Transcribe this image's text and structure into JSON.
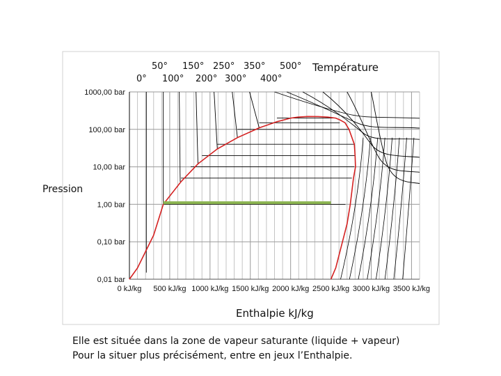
{
  "chart_data": {
    "type": "line",
    "title": "",
    "xlabel": "Enthalpie kJ/kg",
    "ylabel": "Pression",
    "x_ticks": [
      "0 kJ/kg",
      "500 kJ/kg",
      "1000 kJ/kg",
      "1500 kJ/kg",
      "2000 kJ/kg",
      "2500 kJ/kg",
      "3000 kJ/kg",
      "3500 kJ/kg"
    ],
    "x_tick_values": [
      0,
      500,
      1000,
      1500,
      2000,
      2500,
      3000,
      3500
    ],
    "y_ticks": [
      "1000,00 bar",
      "100,00 bar",
      "10,00 bar",
      "1,00 bar",
      "0,10 bar",
      "0,01 bar"
    ],
    "y_tick_values": [
      1000,
      100,
      10,
      1,
      0.1,
      0.01
    ],
    "xlim": [
      0,
      3600
    ],
    "ylim": [
      0.01,
      1000
    ],
    "y_scale": "log",
    "grid": true,
    "temperature_label": "Température",
    "temperature_labels": [
      "0°",
      "50°",
      "100°",
      "150°",
      "200°",
      "250°",
      "300°",
      "350°",
      "400°",
      "500°"
    ],
    "saturation_dome": {
      "color": "#d42020",
      "x": [
        0,
        100,
        300,
        420,
        640,
        850,
        1090,
        1340,
        1610,
        1830,
        2000,
        2090,
        2215,
        2340,
        2460,
        2560,
        2610,
        2675,
        2725,
        2790,
        2800,
        2805,
        2780,
        2740,
        2700,
        2560,
        2500
      ],
      "y": [
        0.01,
        0.02,
        0.15,
        1,
        4,
        12,
        30,
        60,
        110,
        160,
        200,
        212,
        221,
        220,
        212,
        200,
        180,
        150,
        100,
        40,
        20,
        10,
        5,
        1,
        0.3,
        0.02,
        0.01
      ]
    },
    "isobars": {
      "pressures": [
        200,
        150,
        100,
        40,
        20,
        10,
        5,
        1
      ],
      "x_start": [
        1830,
        1610,
        1340,
        1090,
        900,
        760,
        640,
        420
      ],
      "x_end": [
        2560,
        2610,
        2725,
        2790,
        2800,
        2790,
        2760,
        2680
      ]
    },
    "highlight_line": {
      "color": "#8db552",
      "pressure": 1.1,
      "x": [
        420,
        2500
      ]
    },
    "isotherm_color": "#000000"
  },
  "text": {
    "caption_line1": "Elle est située dans la zone de vapeur saturante (liquide + vapeur)",
    "caption_line2": "Pour la situer plus précisément, entre en jeux l’Enthalpie."
  }
}
